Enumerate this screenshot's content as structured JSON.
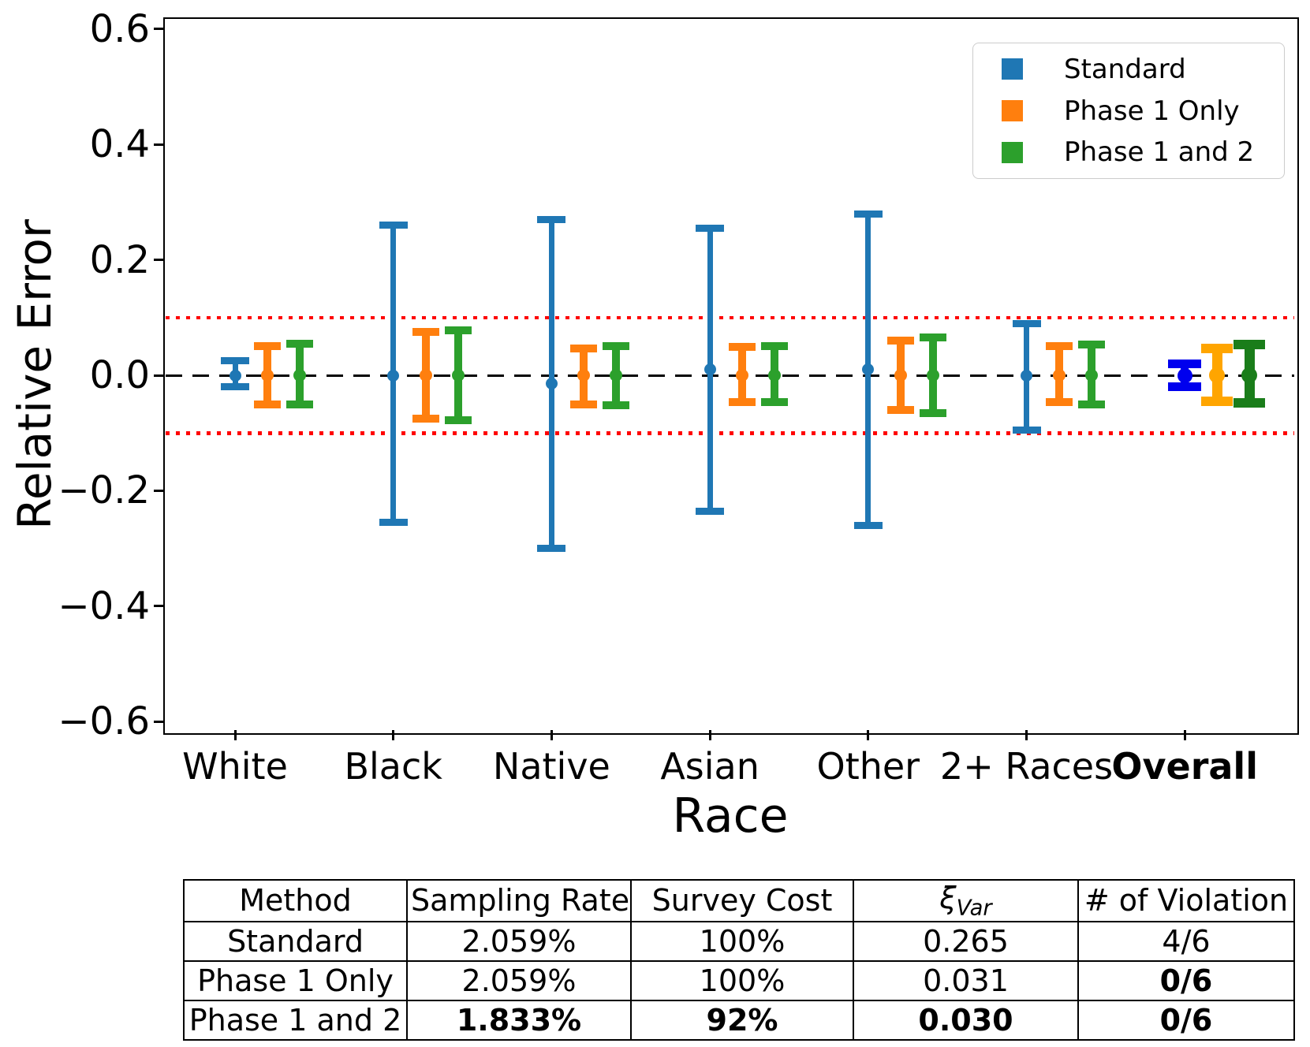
{
  "chart_data": {
    "type": "errorbar",
    "title": "",
    "xlabel": "Race",
    "ylabel": "Relative Error",
    "ylim": [
      -0.62,
      0.62
    ],
    "grid": false,
    "legend_position": "upper right",
    "yticks": [
      {
        "label": "0.6",
        "value": 0.6
      },
      {
        "label": "0.4",
        "value": 0.4
      },
      {
        "label": "0.2",
        "value": 0.2
      },
      {
        "label": "0.0",
        "value": 0.0
      },
      {
        "label": "−0.2",
        "value": -0.2
      },
      {
        "label": "−0.4",
        "value": -0.4
      },
      {
        "label": "−0.6",
        "value": -0.6
      }
    ],
    "categories": [
      {
        "label": "White",
        "bold": false
      },
      {
        "label": "Black",
        "bold": false
      },
      {
        "label": "Native",
        "bold": false
      },
      {
        "label": "Asian",
        "bold": false
      },
      {
        "label": "Other",
        "bold": false
      },
      {
        "label": "2+ Races",
        "bold": false
      },
      {
        "label": "Overall",
        "bold": true
      }
    ],
    "reference_lines": {
      "zero": 0.0,
      "upper_threshold": 0.1,
      "lower_threshold": -0.1,
      "threshold_color": "#ff0000",
      "zero_color": "#000000"
    },
    "series": [
      {
        "name": "Standard",
        "color": "#1f77b4",
        "overall_color": "#0000ee",
        "points_lo_center_hi": [
          [
            -0.02,
            0.0,
            0.025
          ],
          [
            -0.255,
            0.0,
            0.26
          ],
          [
            -0.3,
            -0.015,
            0.27
          ],
          [
            -0.235,
            0.01,
            0.255
          ],
          [
            -0.26,
            0.01,
            0.28
          ],
          [
            -0.095,
            0.0,
            0.09
          ],
          [
            -0.02,
            0.0,
            0.02
          ]
        ]
      },
      {
        "name": "Phase 1 Only",
        "color": "#ff7f0e",
        "overall_color": "#ffa500",
        "points_lo_center_hi": [
          [
            -0.05,
            0.0,
            0.05
          ],
          [
            -0.075,
            0.0,
            0.075
          ],
          [
            -0.05,
            0.0,
            0.047
          ],
          [
            -0.046,
            0.0,
            0.049
          ],
          [
            -0.06,
            0.0,
            0.06
          ],
          [
            -0.046,
            0.0,
            0.051
          ],
          [
            -0.045,
            0.0,
            0.047
          ]
        ]
      },
      {
        "name": "Phase 1 and 2",
        "color": "#2ca02c",
        "overall_color": "#1a7d1a",
        "points_lo_center_hi": [
          [
            -0.05,
            0.0,
            0.055
          ],
          [
            -0.078,
            0.0,
            0.078
          ],
          [
            -0.052,
            0.0,
            0.05
          ],
          [
            -0.046,
            0.0,
            0.051
          ],
          [
            -0.066,
            0.0,
            0.065
          ],
          [
            -0.05,
            0.0,
            0.053
          ],
          [
            -0.048,
            0.0,
            0.053
          ]
        ]
      }
    ]
  },
  "table": {
    "headers": [
      {
        "text": "Method"
      },
      {
        "text": "Sampling Rate"
      },
      {
        "text": "Survey Cost"
      },
      {
        "text": "ξ",
        "subscript": "Var",
        "italic": true
      },
      {
        "text": "# of Violation"
      }
    ],
    "rows": [
      {
        "cells": [
          "Standard",
          "2.059%",
          "100%",
          "0.265",
          "4/6"
        ],
        "bold": [
          false,
          false,
          false,
          false,
          false
        ]
      },
      {
        "cells": [
          "Phase 1 Only",
          "2.059%",
          "100%",
          "0.031",
          "0/6"
        ],
        "bold": [
          false,
          false,
          false,
          false,
          true
        ]
      },
      {
        "cells": [
          "Phase 1 and 2",
          "1.833%",
          "92%",
          "0.030",
          "0/6"
        ],
        "bold": [
          false,
          true,
          true,
          true,
          true
        ]
      }
    ]
  }
}
